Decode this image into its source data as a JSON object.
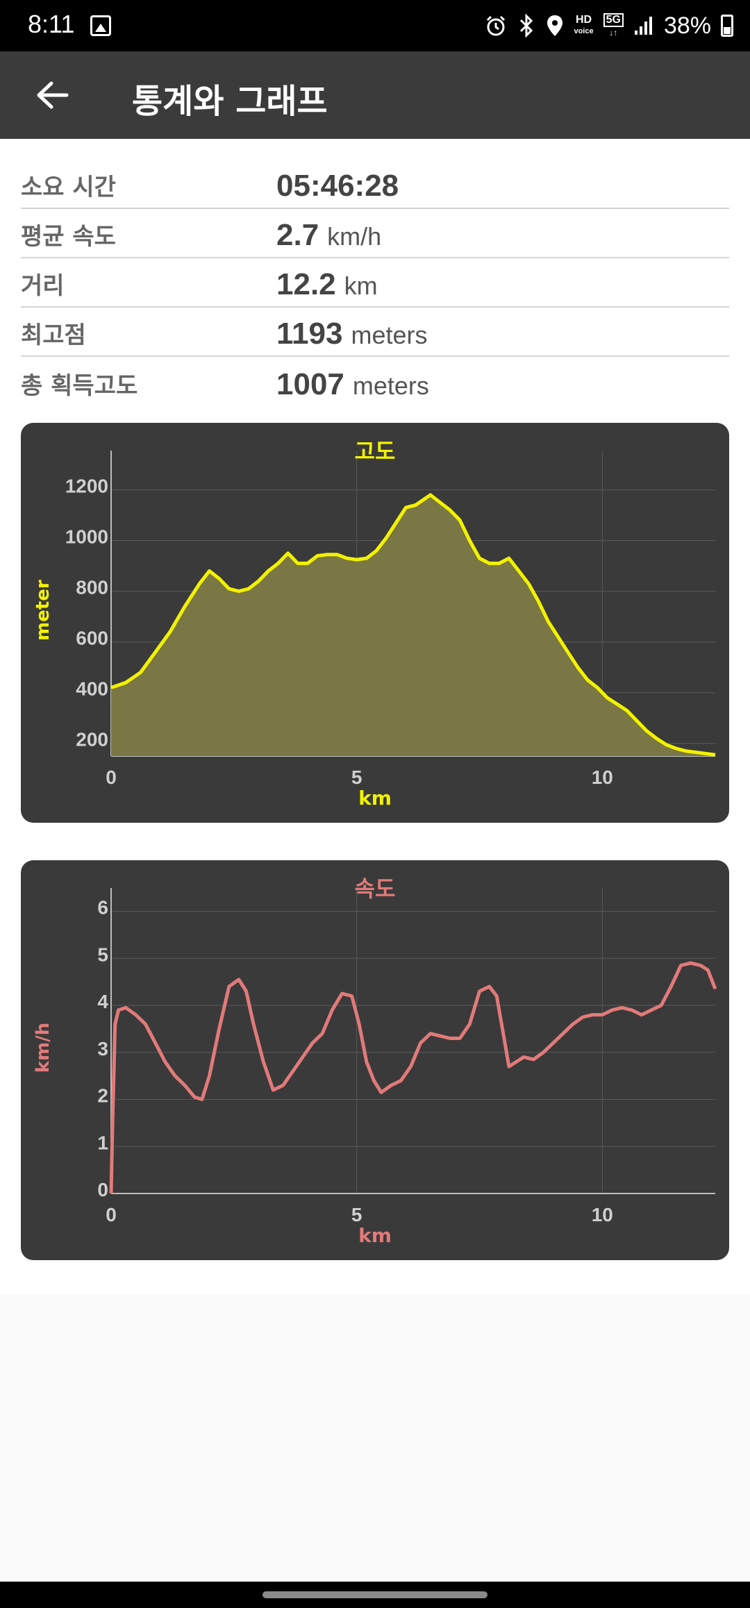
{
  "status_bar": {
    "time": "8:11",
    "hd_label": "HD",
    "voice_label": "voice",
    "network_label": "5G",
    "battery": "38%",
    "battery_level": 0.38,
    "icons": [
      "image-icon",
      "alarm-icon",
      "bluetooth-icon",
      "location-icon",
      "signal-icon",
      "battery-icon"
    ]
  },
  "app_bar": {
    "title": "통계와 그래프",
    "back_icon": "arrow-back-icon"
  },
  "stats": [
    {
      "label": "소요 시간",
      "value": "05:46:28",
      "unit": ""
    },
    {
      "label": "평균 속도",
      "value": "2.7",
      "unit": "km/h"
    },
    {
      "label": "거리",
      "value": "12.2",
      "unit": "km"
    },
    {
      "label": "최고점",
      "value": "1193",
      "unit": "meters"
    },
    {
      "label": "총 획득고도",
      "value": "1007",
      "unit": "meters"
    }
  ],
  "chart_data": [
    {
      "type": "area",
      "title": "고도",
      "xlabel": "km",
      "ylabel": "meter",
      "color": "#f2f200",
      "fill": "#7a7745",
      "xlim": [
        0,
        12.3
      ],
      "ylim": [
        150,
        1300
      ],
      "xticks": [
        0,
        5,
        10
      ],
      "yticks": [
        200,
        400,
        600,
        800,
        1000,
        1200
      ],
      "grid": true,
      "x": [
        0,
        0.3,
        0.6,
        0.9,
        1.2,
        1.5,
        1.8,
        2.0,
        2.2,
        2.4,
        2.6,
        2.8,
        3.0,
        3.2,
        3.4,
        3.6,
        3.8,
        4.0,
        4.2,
        4.4,
        4.6,
        4.8,
        5.0,
        5.2,
        5.4,
        5.6,
        5.8,
        6.0,
        6.2,
        6.5,
        6.7,
        6.9,
        7.1,
        7.3,
        7.5,
        7.7,
        7.9,
        8.1,
        8.3,
        8.5,
        8.7,
        8.9,
        9.1,
        9.3,
        9.5,
        9.7,
        9.9,
        10.1,
        10.3,
        10.5,
        10.7,
        10.9,
        11.1,
        11.3,
        11.5,
        11.7,
        11.9,
        12.1,
        12.3
      ],
      "y": [
        420,
        440,
        480,
        560,
        640,
        740,
        830,
        880,
        850,
        810,
        800,
        810,
        840,
        880,
        910,
        950,
        910,
        910,
        940,
        945,
        945,
        930,
        925,
        930,
        960,
        1010,
        1070,
        1130,
        1140,
        1180,
        1150,
        1120,
        1080,
        1000,
        930,
        910,
        910,
        930,
        880,
        830,
        760,
        680,
        620,
        560,
        500,
        450,
        420,
        380,
        355,
        330,
        290,
        250,
        220,
        195,
        180,
        170,
        165,
        160,
        155
      ]
    },
    {
      "type": "line",
      "title": "속도",
      "xlabel": "km",
      "ylabel": "km/h",
      "color": "#e27a7a",
      "xlim": [
        0,
        12.3
      ],
      "ylim": [
        0,
        6.2
      ],
      "xticks": [
        0,
        5,
        10
      ],
      "yticks": [
        0,
        1,
        2,
        3,
        4,
        5,
        6
      ],
      "grid": true,
      "x": [
        0,
        0.03,
        0.08,
        0.15,
        0.3,
        0.5,
        0.7,
        0.9,
        1.1,
        1.3,
        1.5,
        1.7,
        1.85,
        2.0,
        2.2,
        2.4,
        2.6,
        2.75,
        2.9,
        3.1,
        3.3,
        3.5,
        3.7,
        3.9,
        4.1,
        4.3,
        4.5,
        4.7,
        4.9,
        5.05,
        5.2,
        5.35,
        5.5,
        5.7,
        5.9,
        6.1,
        6.3,
        6.5,
        6.7,
        6.9,
        7.1,
        7.3,
        7.5,
        7.7,
        7.85,
        8.0,
        8.1,
        8.25,
        8.4,
        8.6,
        8.8,
        9.0,
        9.2,
        9.4,
        9.6,
        9.8,
        10.0,
        10.2,
        10.4,
        10.6,
        10.8,
        11.0,
        11.2,
        11.4,
        11.6,
        11.8,
        12.0,
        12.15,
        12.3
      ],
      "y": [
        0,
        1.5,
        3.6,
        3.9,
        3.95,
        3.8,
        3.6,
        3.2,
        2.8,
        2.5,
        2.3,
        2.05,
        2.0,
        2.5,
        3.5,
        4.4,
        4.55,
        4.3,
        3.6,
        2.8,
        2.2,
        2.3,
        2.6,
        2.9,
        3.2,
        3.4,
        3.9,
        4.25,
        4.2,
        3.6,
        2.8,
        2.4,
        2.15,
        2.3,
        2.4,
        2.7,
        3.2,
        3.4,
        3.35,
        3.3,
        3.3,
        3.6,
        4.3,
        4.4,
        4.2,
        3.3,
        2.7,
        2.8,
        2.9,
        2.85,
        3.0,
        3.2,
        3.4,
        3.6,
        3.75,
        3.8,
        3.8,
        3.9,
        3.95,
        3.9,
        3.8,
        3.9,
        4.0,
        4.4,
        4.85,
        4.9,
        4.85,
        4.75,
        4.35
      ]
    }
  ]
}
